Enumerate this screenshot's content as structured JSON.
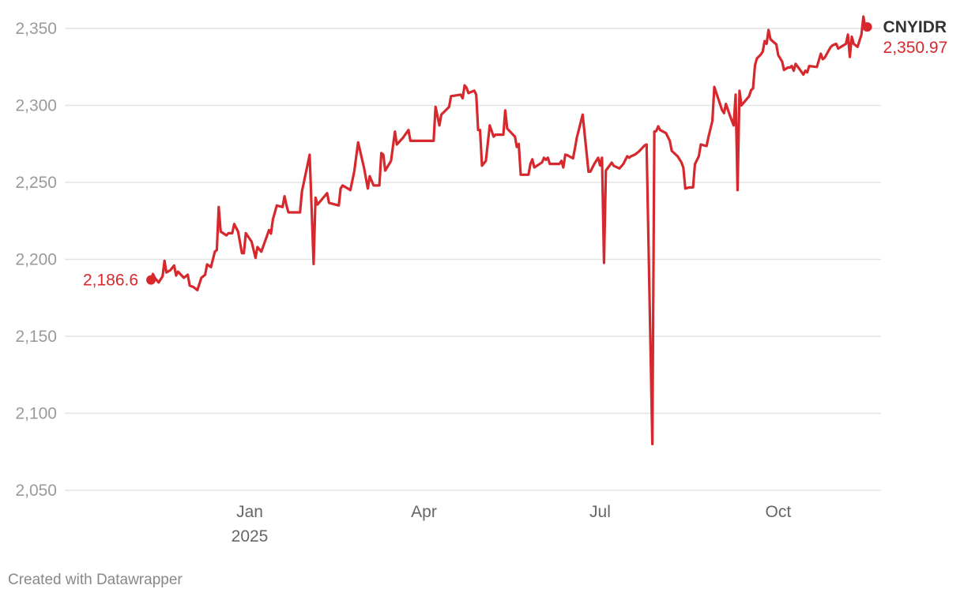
{
  "chart_data": {
    "type": "line",
    "title": "",
    "xlabel": "",
    "ylabel": "",
    "ylim": [
      2050,
      2350
    ],
    "xlim": [
      "2024-11-11",
      "2025-11-16"
    ],
    "grid": true,
    "yticks": [
      2050,
      2100,
      2150,
      2200,
      2250,
      2300,
      2350
    ],
    "ytick_labels": [
      "2,050",
      "2,100",
      "2,150",
      "2,200",
      "2,250",
      "2,300",
      "2,350"
    ],
    "xticks": [
      {
        "date": "2025-01-01",
        "label": "Jan",
        "sublabel": "2025"
      },
      {
        "date": "2025-04-01",
        "label": "Apr",
        "sublabel": ""
      },
      {
        "date": "2025-07-01",
        "label": "Jul",
        "sublabel": ""
      },
      {
        "date": "2025-10-01",
        "label": "Oct",
        "sublabel": ""
      }
    ],
    "series": [
      {
        "name": "CNYIDR",
        "color": "#d7282d",
        "start_label": "2,186.6",
        "end_label": "2,350.97",
        "points": [
          [
            "2024-11-11",
            2186.6
          ],
          [
            "2024-11-12",
            2190.5
          ],
          [
            "2024-11-13",
            2188
          ],
          [
            "2024-11-15",
            2185
          ],
          [
            "2024-11-17",
            2189
          ],
          [
            "2024-11-18",
            2199
          ],
          [
            "2024-11-19",
            2191.5
          ],
          [
            "2024-11-21",
            2193
          ],
          [
            "2024-11-23",
            2196
          ],
          [
            "2024-11-24",
            2189.5
          ],
          [
            "2024-11-25",
            2192
          ],
          [
            "2024-11-28",
            2188
          ],
          [
            "2024-11-30",
            2190
          ],
          [
            "2024-12-01",
            2183
          ],
          [
            "2024-12-03",
            2182
          ],
          [
            "2024-12-05",
            2180
          ],
          [
            "2024-12-07",
            2188
          ],
          [
            "2024-12-09",
            2190
          ],
          [
            "2024-12-10",
            2196.7
          ],
          [
            "2024-12-12",
            2195
          ],
          [
            "2024-12-14",
            2205
          ],
          [
            "2024-12-15",
            2206
          ],
          [
            "2024-12-16",
            2234
          ],
          [
            "2024-12-17",
            2218
          ],
          [
            "2024-12-20",
            2215.6
          ],
          [
            "2024-12-21",
            2217
          ],
          [
            "2024-12-23",
            2217
          ],
          [
            "2024-12-24",
            2223
          ],
          [
            "2024-12-26",
            2218
          ],
          [
            "2024-12-28",
            2204
          ],
          [
            "2024-12-29",
            2204
          ],
          [
            "2024-12-30",
            2217
          ],
          [
            "2025-01-02",
            2211.5
          ],
          [
            "2025-01-04",
            2201
          ],
          [
            "2025-01-05",
            2208
          ],
          [
            "2025-01-07",
            2205
          ],
          [
            "2025-01-11",
            2219
          ],
          [
            "2025-01-12",
            2216.7
          ],
          [
            "2025-01-13",
            2226
          ],
          [
            "2025-01-15",
            2235
          ],
          [
            "2025-01-18",
            2234
          ],
          [
            "2025-01-19",
            2241
          ],
          [
            "2025-01-20",
            2235
          ],
          [
            "2025-01-21",
            2230.5
          ],
          [
            "2025-01-27",
            2230.5
          ],
          [
            "2025-01-28",
            2244
          ],
          [
            "2025-02-01",
            2268
          ],
          [
            "2025-02-03",
            2197
          ],
          [
            "2025-02-04",
            2240
          ],
          [
            "2025-02-05",
            2235.6
          ],
          [
            "2025-02-08",
            2240
          ],
          [
            "2025-02-10",
            2243
          ],
          [
            "2025-02-11",
            2236.7
          ],
          [
            "2025-02-16",
            2235
          ],
          [
            "2025-02-17",
            2246
          ],
          [
            "2025-02-18",
            2248
          ],
          [
            "2025-02-22",
            2245
          ],
          [
            "2025-02-24",
            2257
          ],
          [
            "2025-02-26",
            2276
          ],
          [
            "2025-03-01",
            2259.7
          ],
          [
            "2025-03-03",
            2246
          ],
          [
            "2025-03-04",
            2254
          ],
          [
            "2025-03-06",
            2248
          ],
          [
            "2025-03-09",
            2248
          ],
          [
            "2025-03-10",
            2269
          ],
          [
            "2025-03-11",
            2268
          ],
          [
            "2025-03-12",
            2257.7
          ],
          [
            "2025-03-15",
            2264
          ],
          [
            "2025-03-17",
            2283
          ],
          [
            "2025-03-18",
            2274.6
          ],
          [
            "2025-03-21",
            2278.7
          ],
          [
            "2025-03-24",
            2284
          ],
          [
            "2025-03-25",
            2277
          ],
          [
            "2025-04-06",
            2277
          ],
          [
            "2025-04-07",
            2299
          ],
          [
            "2025-04-09",
            2287
          ],
          [
            "2025-04-10",
            2294
          ],
          [
            "2025-04-14",
            2299
          ],
          [
            "2025-04-15",
            2306
          ],
          [
            "2025-04-20",
            2307
          ],
          [
            "2025-04-21",
            2304.6
          ],
          [
            "2025-04-22",
            2313
          ],
          [
            "2025-04-23",
            2311.5
          ],
          [
            "2025-04-24",
            2308
          ],
          [
            "2025-04-27",
            2309.6
          ],
          [
            "2025-04-28",
            2307
          ],
          [
            "2025-04-29",
            2284
          ],
          [
            "2025-04-30",
            2284
          ],
          [
            "2025-05-01",
            2260.8
          ],
          [
            "2025-05-03",
            2264
          ],
          [
            "2025-05-05",
            2287
          ],
          [
            "2025-05-07",
            2279.7
          ],
          [
            "2025-05-08",
            2281
          ],
          [
            "2025-05-12",
            2281
          ],
          [
            "2025-05-13",
            2296.7
          ],
          [
            "2025-05-14",
            2285
          ],
          [
            "2025-05-18",
            2279.7
          ],
          [
            "2025-05-19",
            2273
          ],
          [
            "2025-05-20",
            2275
          ],
          [
            "2025-05-21",
            2255
          ],
          [
            "2025-05-25",
            2255
          ],
          [
            "2025-05-26",
            2262
          ],
          [
            "2025-05-27",
            2265
          ],
          [
            "2025-05-28",
            2259.7
          ],
          [
            "2025-06-01",
            2263
          ],
          [
            "2025-06-02",
            2266
          ],
          [
            "2025-06-03",
            2264.6
          ],
          [
            "2025-06-04",
            2266
          ],
          [
            "2025-06-05",
            2262
          ],
          [
            "2025-06-10",
            2262
          ],
          [
            "2025-06-11",
            2264
          ],
          [
            "2025-06-12",
            2259.7
          ],
          [
            "2025-06-13",
            2268
          ],
          [
            "2025-06-14",
            2267.7
          ],
          [
            "2025-06-17",
            2265.6
          ],
          [
            "2025-06-18",
            2272
          ],
          [
            "2025-06-19",
            2279
          ],
          [
            "2025-06-22",
            2294
          ],
          [
            "2025-06-25",
            2257
          ],
          [
            "2025-06-26",
            2257
          ],
          [
            "2025-06-28",
            2262
          ],
          [
            "2025-06-30",
            2266
          ],
          [
            "2025-07-01",
            2261
          ],
          [
            "2025-07-02",
            2266
          ],
          [
            "2025-07-03",
            2197.7
          ],
          [
            "2025-07-04",
            2257.7
          ],
          [
            "2025-07-07",
            2262.8
          ],
          [
            "2025-07-08",
            2260.8
          ],
          [
            "2025-07-11",
            2259
          ],
          [
            "2025-07-13",
            2262
          ],
          [
            "2025-07-15",
            2267
          ],
          [
            "2025-07-16",
            2266
          ],
          [
            "2025-07-17",
            2267
          ],
          [
            "2025-07-19",
            2268
          ],
          [
            "2025-07-21",
            2270
          ],
          [
            "2025-07-24",
            2274
          ],
          [
            "2025-07-25",
            2274.6
          ],
          [
            "2025-07-28",
            2080
          ],
          [
            "2025-07-29",
            2283
          ],
          [
            "2025-07-30",
            2283.3
          ],
          [
            "2025-07-31",
            2286.4
          ],
          [
            "2025-08-01",
            2284
          ],
          [
            "2025-08-04",
            2282
          ],
          [
            "2025-08-06",
            2277
          ],
          [
            "2025-08-07",
            2270.5
          ],
          [
            "2025-08-10",
            2267
          ],
          [
            "2025-08-12",
            2263
          ],
          [
            "2025-08-13",
            2259.7
          ],
          [
            "2025-08-14",
            2246
          ],
          [
            "2025-08-16",
            2246.7
          ],
          [
            "2025-08-18",
            2246.7
          ],
          [
            "2025-08-19",
            2261.8
          ],
          [
            "2025-08-21",
            2267
          ],
          [
            "2025-08-22",
            2274.6
          ],
          [
            "2025-08-25",
            2273.6
          ],
          [
            "2025-08-26",
            2279.7
          ],
          [
            "2025-08-28",
            2290
          ],
          [
            "2025-08-29",
            2312
          ],
          [
            "2025-09-02",
            2297
          ],
          [
            "2025-09-03",
            2295
          ],
          [
            "2025-09-04",
            2301
          ],
          [
            "2025-09-06",
            2293.6
          ],
          [
            "2025-09-08",
            2287
          ],
          [
            "2025-09-09",
            2307
          ],
          [
            "2025-09-10",
            2245
          ],
          [
            "2025-09-11",
            2309.5
          ],
          [
            "2025-09-12",
            2300
          ],
          [
            "2025-09-14",
            2303
          ],
          [
            "2025-09-16",
            2306
          ],
          [
            "2025-09-17",
            2310
          ],
          [
            "2025-09-18",
            2311
          ],
          [
            "2025-09-19",
            2326
          ],
          [
            "2025-09-20",
            2330.5
          ],
          [
            "2025-09-22",
            2333
          ],
          [
            "2025-09-23",
            2335
          ],
          [
            "2025-09-24",
            2341.8
          ],
          [
            "2025-09-25",
            2340
          ],
          [
            "2025-09-26",
            2349
          ],
          [
            "2025-09-27",
            2343
          ],
          [
            "2025-09-28",
            2341.8
          ],
          [
            "2025-09-30",
            2339.7
          ],
          [
            "2025-10-01",
            2332.6
          ],
          [
            "2025-10-03",
            2328.5
          ],
          [
            "2025-10-04",
            2323
          ],
          [
            "2025-10-06",
            2324.6
          ],
          [
            "2025-10-07",
            2324.6
          ],
          [
            "2025-10-08",
            2325.6
          ],
          [
            "2025-10-09",
            2322.5
          ],
          [
            "2025-10-10",
            2327
          ],
          [
            "2025-10-12",
            2323.6
          ],
          [
            "2025-10-14",
            2320
          ],
          [
            "2025-10-15",
            2322.5
          ],
          [
            "2025-10-16",
            2321.5
          ],
          [
            "2025-10-17",
            2325.6
          ],
          [
            "2025-10-21",
            2325
          ],
          [
            "2025-10-23",
            2333.6
          ],
          [
            "2025-10-24",
            2330
          ],
          [
            "2025-10-25",
            2331
          ],
          [
            "2025-10-28",
            2337.7
          ],
          [
            "2025-10-29",
            2339
          ],
          [
            "2025-10-31",
            2340
          ],
          [
            "2025-11-01",
            2336.9
          ],
          [
            "2025-11-05",
            2340
          ],
          [
            "2025-11-06",
            2346
          ],
          [
            "2025-11-07",
            2331.5
          ],
          [
            "2025-11-08",
            2344.6
          ],
          [
            "2025-11-09",
            2340
          ],
          [
            "2025-11-11",
            2338
          ],
          [
            "2025-11-13",
            2346
          ],
          [
            "2025-11-14",
            2357.7
          ],
          [
            "2025-11-15",
            2350
          ],
          [
            "2025-11-16",
            2350.97
          ]
        ]
      }
    ]
  },
  "footer": {
    "credit": "Created with Datawrapper"
  }
}
